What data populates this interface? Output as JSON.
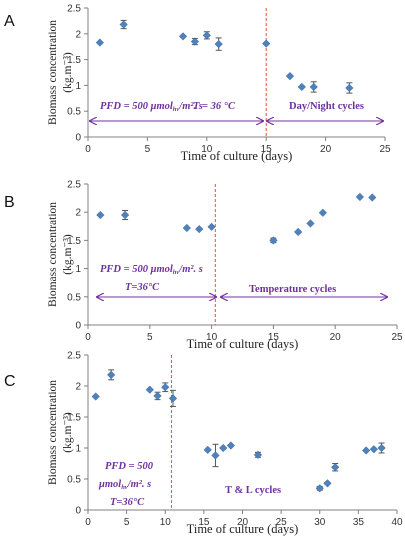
{
  "colors": {
    "marker": "#4F81BD",
    "errorbar": "#555555",
    "annotation": "#7030A0",
    "split_line": "#E8503A",
    "axis": "#808080"
  },
  "y_axis_label": "Biomass concentration",
  "y_axis_unit": "(kg.m⁻³)",
  "chart_data": [
    {
      "type": "scatter",
      "panel": "A",
      "xlabel": "Time of culture (days)",
      "ylabel": "Biomass concentration (kg.m⁻³)",
      "xlim": [
        0,
        25
      ],
      "ylim": [
        0,
        2.5
      ],
      "x_ticks": [
        "0",
        "5",
        "10",
        "15",
        "20",
        "25"
      ],
      "y_ticks": [
        "0",
        "0.5",
        "1",
        "1.5",
        "2",
        "2.5"
      ],
      "grid": false,
      "split_day": 15,
      "annotations": {
        "left_line1": "PFD = 500 μmol",
        "left_line1_sub": "hv",
        "left_line1_tail": "/m². s",
        "left_line2": "T = 36 °C",
        "right": "Day/Night cycles"
      },
      "points": [
        {
          "x": 1,
          "y": 1.83,
          "err": 0.0
        },
        {
          "x": 3,
          "y": 2.18,
          "err": 0.08
        },
        {
          "x": 8,
          "y": 1.95,
          "err": 0.0
        },
        {
          "x": 9,
          "y": 1.85,
          "err": 0.06
        },
        {
          "x": 10,
          "y": 1.97,
          "err": 0.07
        },
        {
          "x": 11,
          "y": 1.8,
          "err": 0.12
        },
        {
          "x": 15,
          "y": 1.81,
          "err": 0.0
        },
        {
          "x": 17,
          "y": 1.18,
          "err": 0.0
        },
        {
          "x": 18,
          "y": 0.97,
          "err": 0.0
        },
        {
          "x": 19,
          "y": 0.97,
          "err": 0.1
        },
        {
          "x": 22,
          "y": 0.95,
          "err": 0.1
        }
      ]
    },
    {
      "type": "scatter",
      "panel": "B",
      "xlabel": "Time of culture (days)",
      "ylabel": "Biomass concentration (kg.m⁻³)",
      "xlim": [
        0,
        25
      ],
      "ylim": [
        0,
        2.5
      ],
      "x_ticks": [
        "0",
        "5",
        "10",
        "15",
        "20",
        "25"
      ],
      "y_ticks": [
        "0",
        "0.5",
        "1",
        "1.5",
        "2",
        "2.5"
      ],
      "grid": false,
      "split_day": 10.3,
      "annotations": {
        "left_line1": "PFD = 500 μmol",
        "left_line1_sub": "hv",
        "left_line1_tail": "/m². s",
        "left_line2": "T=36°C",
        "right": "Temperature cycles"
      },
      "points": [
        {
          "x": 1,
          "y": 1.95,
          "err": 0.0
        },
        {
          "x": 3,
          "y": 1.95,
          "err": 0.08
        },
        {
          "x": 8,
          "y": 1.72,
          "err": 0.0
        },
        {
          "x": 9,
          "y": 1.7,
          "err": 0.0
        },
        {
          "x": 10,
          "y": 1.74,
          "err": 0.0
        },
        {
          "x": 15,
          "y": 1.5,
          "err": 0.04
        },
        {
          "x": 17,
          "y": 1.65,
          "err": 0.0
        },
        {
          "x": 18,
          "y": 1.8,
          "err": 0.0
        },
        {
          "x": 19,
          "y": 1.99,
          "err": 0.0
        },
        {
          "x": 22,
          "y": 2.27,
          "err": 0.0
        },
        {
          "x": 23,
          "y": 2.26,
          "err": 0.0
        }
      ]
    },
    {
      "type": "scatter",
      "panel": "C",
      "xlabel": "Time of culture (days)",
      "ylabel": "Biomass concentration (kg.m⁻³)",
      "xlim": [
        0,
        40
      ],
      "ylim": [
        0,
        2.5
      ],
      "x_ticks": [
        "0",
        "5",
        "10",
        "15",
        "20",
        "25",
        "30",
        "35",
        "40"
      ],
      "y_ticks": [
        "0",
        "0.5",
        "1",
        "1.5",
        "2",
        "2.5"
      ],
      "grid": false,
      "split_day": 10.8,
      "annotations": {
        "left_line1": "PFD = 500",
        "left_line2": "μmol",
        "left_line2_sub": "hv",
        "left_line2_tail": "/m². s",
        "left_line3": "T=36°C",
        "right": "T & L cycles"
      },
      "points": [
        {
          "x": 1,
          "y": 1.83,
          "err": 0.0
        },
        {
          "x": 3,
          "y": 2.18,
          "err": 0.08
        },
        {
          "x": 8,
          "y": 1.94,
          "err": 0.0
        },
        {
          "x": 9,
          "y": 1.84,
          "err": 0.06
        },
        {
          "x": 10,
          "y": 1.98,
          "err": 0.07
        },
        {
          "x": 11,
          "y": 1.8,
          "err": 0.13
        },
        {
          "x": 15.5,
          "y": 0.97,
          "err": 0.0
        },
        {
          "x": 16.5,
          "y": 0.88,
          "err": 0.18
        },
        {
          "x": 17.5,
          "y": 1.0,
          "err": 0.0
        },
        {
          "x": 18.5,
          "y": 1.04,
          "err": 0.0
        },
        {
          "x": 22,
          "y": 0.89,
          "err": 0.04
        },
        {
          "x": 30,
          "y": 0.35,
          "err": 0.03
        },
        {
          "x": 31,
          "y": 0.43,
          "err": 0.0
        },
        {
          "x": 32,
          "y": 0.69,
          "err": 0.06
        },
        {
          "x": 36,
          "y": 0.96,
          "err": 0.0
        },
        {
          "x": 37,
          "y": 0.98,
          "err": 0.0
        },
        {
          "x": 38,
          "y": 1.0,
          "err": 0.08
        }
      ]
    }
  ]
}
